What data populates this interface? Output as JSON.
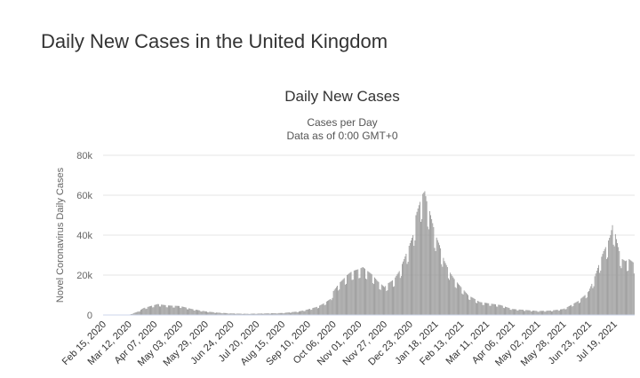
{
  "page": {
    "title": "Daily New Cases in the United Kingdom"
  },
  "chart_data": {
    "type": "bar",
    "title": "Daily New Cases",
    "subtitle_lines": [
      "Cases per Day",
      "Data as of 0:00 GMT+0"
    ],
    "xlabel": "",
    "ylabel": "Novel Coronavirus Daily Cases",
    "ylim": [
      0,
      80000
    ],
    "y_ticks": [
      0,
      20000,
      40000,
      60000,
      80000
    ],
    "y_tick_labels": [
      "0",
      "20k",
      "40k",
      "60k",
      "80k"
    ],
    "x_tick_labels": [
      "Feb 15, 2020",
      "Mar 12, 2020",
      "Apr 07, 2020",
      "May 03, 2020",
      "May 29, 2020",
      "Jun 24, 2020",
      "Jul 20, 2020",
      "Aug 15, 2020",
      "Sep 10, 2020",
      "Oct 06, 2020",
      "Nov 01, 2020",
      "Nov 27, 2020",
      "Dec 23, 2020",
      "Jan 18, 2021",
      "Feb 13, 2021",
      "Mar 11, 2021",
      "Apr 06, 2021",
      "May 02, 2021",
      "May 28, 2021",
      "Jun 23, 2021",
      "Jul 19, 2021"
    ],
    "x_tick_dates": [
      "2020-02-15",
      "2020-03-12",
      "2020-04-07",
      "2020-05-03",
      "2020-05-29",
      "2020-06-24",
      "2020-07-20",
      "2020-08-15",
      "2020-09-10",
      "2020-10-06",
      "2020-11-01",
      "2020-11-27",
      "2020-12-23",
      "2021-01-18",
      "2021-02-13",
      "2021-03-11",
      "2021-04-06",
      "2021-05-02",
      "2021-05-28",
      "2021-06-23",
      "2021-07-19"
    ],
    "date_range": [
      "2020-02-15",
      "2021-08-08"
    ],
    "series": [
      {
        "color": "#999999",
        "x": [
          "2020-02-15",
          "2020-03-05",
          "2020-03-12",
          "2020-03-20",
          "2020-03-27",
          "2020-04-03",
          "2020-04-07",
          "2020-04-10",
          "2020-04-20",
          "2020-05-03",
          "2020-05-15",
          "2020-05-29",
          "2020-06-10",
          "2020-06-24",
          "2020-07-10",
          "2020-07-20",
          "2020-08-15",
          "2020-09-01",
          "2020-09-10",
          "2020-09-20",
          "2020-09-25",
          "2020-10-03",
          "2020-10-06",
          "2020-10-12",
          "2020-10-20",
          "2020-10-25",
          "2020-11-01",
          "2020-11-05",
          "2020-11-10",
          "2020-11-15",
          "2020-11-20",
          "2020-11-27",
          "2020-12-01",
          "2020-12-07",
          "2020-12-12",
          "2020-12-17",
          "2020-12-23",
          "2020-12-26",
          "2020-12-29",
          "2021-01-01",
          "2021-01-04",
          "2021-01-07",
          "2021-01-09",
          "2021-01-12",
          "2021-01-15",
          "2021-01-18",
          "2021-01-22",
          "2021-01-27",
          "2021-02-01",
          "2021-02-06",
          "2021-02-13",
          "2021-02-20",
          "2021-02-27",
          "2021-03-04",
          "2021-03-11",
          "2021-03-25",
          "2021-04-06",
          "2021-04-20",
          "2021-05-02",
          "2021-05-15",
          "2021-05-28",
          "2021-06-05",
          "2021-06-12",
          "2021-06-18",
          "2021-06-23",
          "2021-06-28",
          "2021-07-03",
          "2021-07-08",
          "2021-07-12",
          "2021-07-15",
          "2021-07-17",
          "2021-07-19",
          "2021-07-21",
          "2021-07-24",
          "2021-07-27",
          "2021-07-30",
          "2021-08-03",
          "2021-08-08"
        ],
        "values": [
          0,
          0,
          100,
          1500,
          3500,
          4500,
          5000,
          5500,
          4800,
          4500,
          3000,
          1800,
          1200,
          800,
          600,
          700,
          1000,
          1800,
          2800,
          4200,
          5500,
          8000,
          12000,
          16000,
          20000,
          22000,
          23000,
          24000,
          22000,
          20000,
          17000,
          14000,
          16000,
          18000,
          22000,
          28000,
          36000,
          40000,
          50000,
          55000,
          60000,
          62000,
          57000,
          52000,
          46000,
          40000,
          35000,
          27000,
          22000,
          18000,
          14000,
          10000,
          8000,
          6500,
          6000,
          5000,
          3000,
          2500,
          2000,
          2200,
          3000,
          5000,
          7000,
          9500,
          12000,
          18000,
          25000,
          32000,
          36000,
          40000,
          45000,
          43000,
          38000,
          32000,
          28000,
          27000,
          28000,
          26000
        ]
      }
    ],
    "grid": true,
    "legend": "none"
  }
}
